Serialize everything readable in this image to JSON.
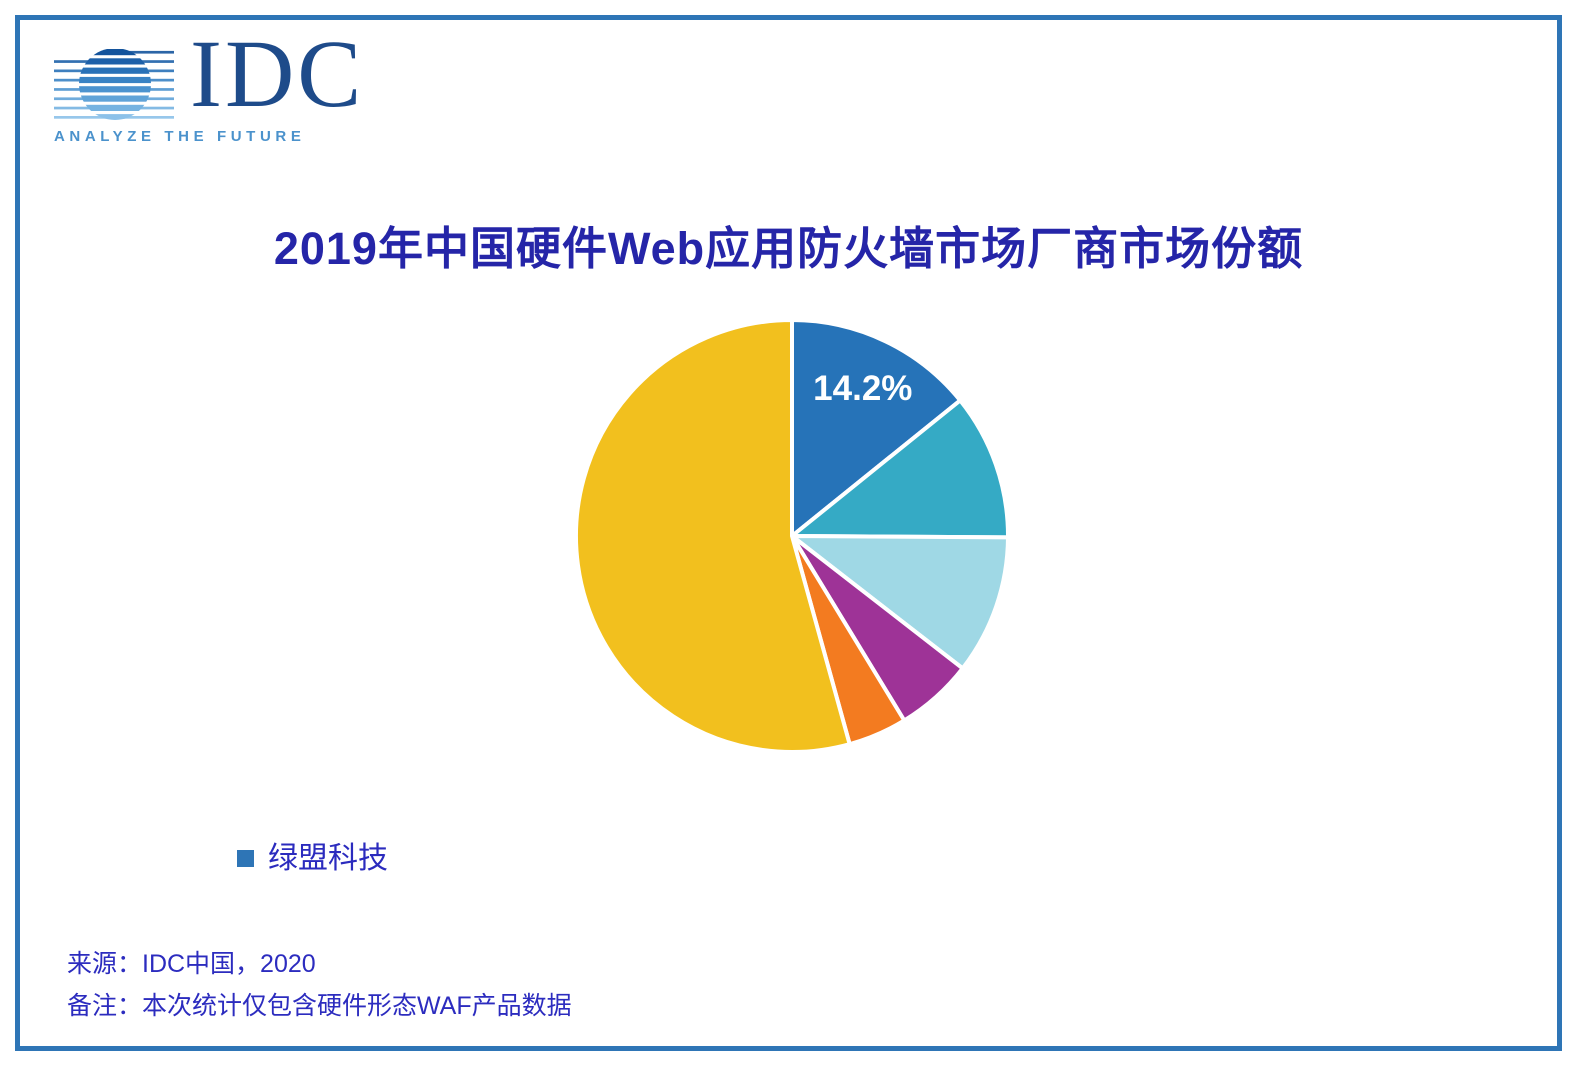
{
  "page": {
    "background": "#ffffff",
    "border_color": "#2e75b6"
  },
  "logo": {
    "text": "IDC",
    "tagline": "ANALYZE THE FUTURE",
    "text_color": "#1e4b8a",
    "tagline_color": "#4b92cc",
    "globe_stripe_colors": [
      "#14549c",
      "#1d60a9",
      "#2971b7",
      "#3a83c4",
      "#4c93cf",
      "#60a3d8",
      "#76b3e1",
      "#8cc1e9"
    ]
  },
  "title": {
    "text": "2019年中国硬件Web应用防火墙市场厂商市场份额",
    "color": "#2525a8"
  },
  "chart_data": {
    "type": "pie",
    "title": "2019年中国硬件Web应用防火墙市场厂商市场份额",
    "unit": "percent",
    "start_angle_deg": 0,
    "direction": "clockwise",
    "slices": [
      {
        "label": "绿盟科技",
        "value": 14.2,
        "color": "#2673b8",
        "data_label": "14.2%"
      },
      {
        "label": "",
        "value": 10.9,
        "color": "#35aac5",
        "data_label": ""
      },
      {
        "label": "",
        "value": 10.4,
        "color": "#9fd8e5",
        "data_label": ""
      },
      {
        "label": "",
        "value": 5.8,
        "color": "#9e3397",
        "data_label": ""
      },
      {
        "label": "",
        "value": 4.4,
        "color": "#f37b20",
        "data_label": ""
      },
      {
        "label": "",
        "value": 54.3,
        "color": "#f2c01e",
        "data_label": ""
      }
    ],
    "data_label_style": {
      "color": "#ffffff"
    },
    "legend_position": "bottom-left",
    "grid": false
  },
  "legend": {
    "items": [
      {
        "label": "绿盟科技",
        "marker_color": "#2e75b6"
      }
    ]
  },
  "footer": {
    "source": "来源：IDC中国，2020",
    "note": "备注：本次统计仅包含硬件形态WAF产品数据",
    "color": "#2c2cbf"
  }
}
